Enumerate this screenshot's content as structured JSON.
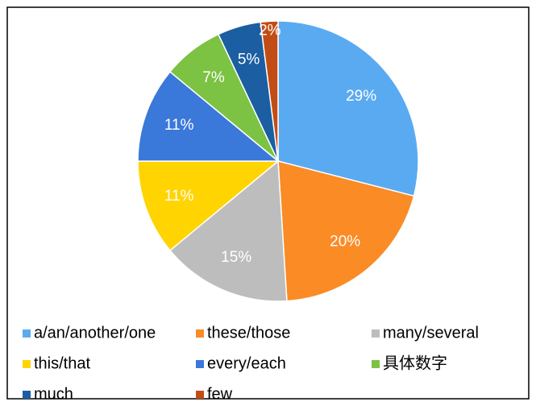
{
  "chart_data": {
    "type": "pie",
    "categories": [
      "a/an/another/one",
      "these/those",
      "many/several",
      "this/that",
      "every/each",
      "具体数字",
      "much",
      "few"
    ],
    "values": [
      29,
      20,
      15,
      11,
      11,
      7,
      5,
      2
    ],
    "value_labels": [
      "29%",
      "20%",
      "15%",
      "11%",
      "11%",
      "7%",
      "5%",
      "2%"
    ],
    "colors": [
      "#5aaaf2",
      "#fa8b25",
      "#bdbdbd",
      "#ffd400",
      "#3a78d9",
      "#7cc243",
      "#1b5ea2",
      "#c24d14"
    ],
    "legend": "bottom"
  }
}
